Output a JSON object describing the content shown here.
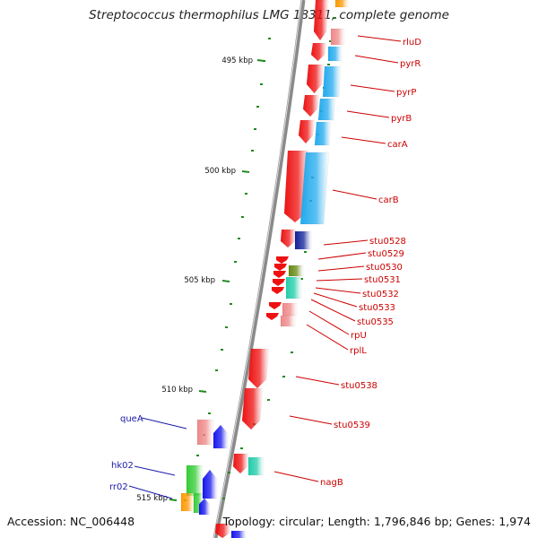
{
  "title": "Streptococcus thermophilus LMG 18311, complete genome",
  "accession_text": "Accession: NC_006448",
  "summary_text": "Topology: circular; Length: 1,796,846 bp; Genes: 1,974",
  "colors": {
    "backbone": "#8a8a8a",
    "tick": "#208a20",
    "label_red": "#cc0000",
    "label_blue": "#1a1aaa",
    "gene_red": "#ee1111",
    "gene_blue": "#1515ee",
    "gene_cyan": "#22aaee",
    "gene_green": "#33cc33",
    "gene_olive": "#668811",
    "gene_teal": "#22ccaa",
    "gene_pink": "#ee8888",
    "gene_orange": "#ff9900",
    "gene_navy": "#112299"
  },
  "kbp_labels": [
    "495 kbp",
    "500 kbp",
    "505 kbp",
    "510 kbp",
    "515 kbp"
  ],
  "gene_labels_right": [
    "rluD",
    "pyrR",
    "pyrP",
    "pyrB",
    "carA",
    "carB",
    "stu0528",
    "stu0529",
    "stu0530",
    "stu0531",
    "stu0532",
    "stu0533",
    "stu0535",
    "rpU",
    "rplL",
    "stu0538",
    "stu0539",
    "nagB"
  ],
  "gene_labels_left": [
    "queA",
    "hk02",
    "rr02"
  ]
}
